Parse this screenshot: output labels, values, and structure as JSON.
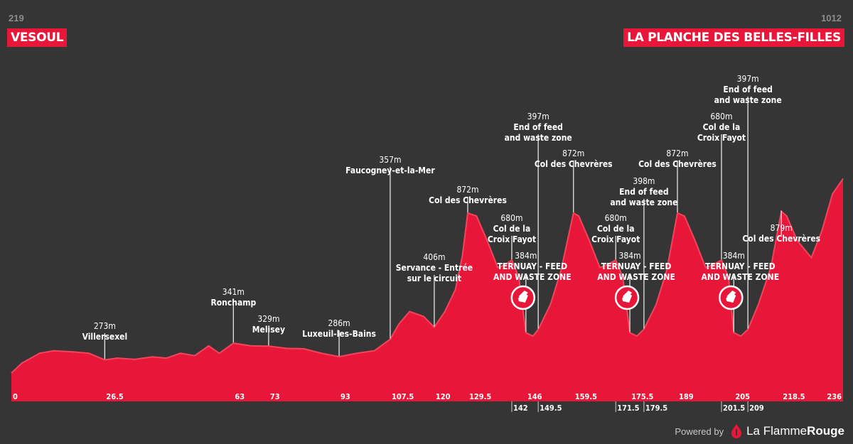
{
  "header": {
    "start_altitude": "219",
    "start_name": "VESOUL",
    "end_altitude": "1012",
    "end_name": "LA PLANCHE DES BELLES-FILLES"
  },
  "footer": {
    "powered_by": "Powered by",
    "brand_prefix": "La Flamme",
    "brand_suffix": "Rouge"
  },
  "colors": {
    "background": "#353535",
    "profile": "#e8173a",
    "profile_highlight": "#f2455c",
    "text": "#ffffff"
  },
  "chart_data": {
    "type": "area",
    "title": "",
    "xlabel": "",
    "ylabel": "",
    "x_unit": "km",
    "x_range": [
      0,
      236
    ],
    "profile": [
      [
        0,
        219
      ],
      [
        3,
        260
      ],
      [
        8,
        300
      ],
      [
        12,
        310
      ],
      [
        18,
        305
      ],
      [
        22,
        300
      ],
      [
        26.5,
        273
      ],
      [
        30,
        280
      ],
      [
        35,
        275
      ],
      [
        40,
        285
      ],
      [
        44,
        280
      ],
      [
        48,
        300
      ],
      [
        52,
        290
      ],
      [
        56,
        330
      ],
      [
        59,
        300
      ],
      [
        63,
        341
      ],
      [
        68,
        330
      ],
      [
        73,
        329
      ],
      [
        78,
        320
      ],
      [
        83,
        318
      ],
      [
        88,
        300
      ],
      [
        93,
        286
      ],
      [
        98,
        300
      ],
      [
        103,
        310
      ],
      [
        107.5,
        357
      ],
      [
        110,
        420
      ],
      [
        113,
        470
      ],
      [
        117,
        450
      ],
      [
        120,
        406
      ],
      [
        123,
        470
      ],
      [
        126,
        560
      ],
      [
        128,
        700
      ],
      [
        129.5,
        872
      ],
      [
        132,
        860
      ],
      [
        135,
        760
      ],
      [
        138,
        650
      ],
      [
        140,
        660
      ],
      [
        142,
        680
      ],
      [
        144,
        610
      ],
      [
        146,
        384
      ],
      [
        148,
        370
      ],
      [
        149.5,
        397
      ],
      [
        153,
        500
      ],
      [
        156,
        640
      ],
      [
        159.5,
        872
      ],
      [
        161,
        860
      ],
      [
        164,
        760
      ],
      [
        167,
        650
      ],
      [
        169,
        660
      ],
      [
        171.5,
        680
      ],
      [
        173.5,
        610
      ],
      [
        175.5,
        384
      ],
      [
        177.5,
        370
      ],
      [
        179.5,
        398
      ],
      [
        183,
        500
      ],
      [
        186,
        640
      ],
      [
        189,
        872
      ],
      [
        191,
        860
      ],
      [
        194,
        760
      ],
      [
        197,
        650
      ],
      [
        199,
        660
      ],
      [
        201.5,
        680
      ],
      [
        203.5,
        610
      ],
      [
        205,
        384
      ],
      [
        207,
        370
      ],
      [
        209,
        397
      ],
      [
        212,
        500
      ],
      [
        215.5,
        650
      ],
      [
        218.5,
        879
      ],
      [
        220,
        860
      ],
      [
        223,
        760
      ],
      [
        227,
        690
      ],
      [
        230,
        800
      ],
      [
        233,
        950
      ],
      [
        236,
        1012
      ]
    ],
    "km_labels": [
      {
        "km": 0,
        "label": "0",
        "row": 1
      },
      {
        "km": 26.5,
        "label": "26.5",
        "row": 1
      },
      {
        "km": 63,
        "label": "63",
        "row": 1
      },
      {
        "km": 73,
        "label": "73",
        "row": 1
      },
      {
        "km": 93,
        "label": "93",
        "row": 1
      },
      {
        "km": 107.5,
        "label": "107.5",
        "row": 1
      },
      {
        "km": 120,
        "label": "120",
        "row": 1
      },
      {
        "km": 129.5,
        "label": "129.5",
        "row": 1
      },
      {
        "km": 142,
        "label": "142",
        "row": 2
      },
      {
        "km": 146,
        "label": "146",
        "row": 1
      },
      {
        "km": 149.5,
        "label": "149.5",
        "row": 2
      },
      {
        "km": 159.5,
        "label": "159.5",
        "row": 1
      },
      {
        "km": 171.5,
        "label": "171.5",
        "row": 2
      },
      {
        "km": 175.5,
        "label": "175.5",
        "row": 1
      },
      {
        "km": 179.5,
        "label": "179.5",
        "row": 2
      },
      {
        "km": 189,
        "label": "189",
        "row": 1
      },
      {
        "km": 201.5,
        "label": "201.5",
        "row": 2
      },
      {
        "km": 205,
        "label": "205",
        "row": 1
      },
      {
        "km": 209,
        "label": "209",
        "row": 2
      },
      {
        "km": 218.5,
        "label": "218.5",
        "row": 1
      },
      {
        "km": 236,
        "label": "236",
        "row": 1
      }
    ],
    "waypoints": [
      {
        "km": 26.5,
        "altitude": "273m",
        "name": [
          "Villersexel"
        ]
      },
      {
        "km": 63,
        "altitude": "341m",
        "name": [
          "Ronchamp"
        ]
      },
      {
        "km": 73,
        "altitude": "329m",
        "name": [
          "Melisey"
        ]
      },
      {
        "km": 93,
        "altitude": "286m",
        "name": [
          "Luxeuil-les-Bains"
        ]
      },
      {
        "km": 107.5,
        "altitude": "357m",
        "name": [
          "Faucogney-et-la-Mer"
        ]
      },
      {
        "km": 120,
        "altitude": "406m",
        "name": [
          "Servance - Entrée",
          "sur le circuit"
        ]
      },
      {
        "km": 129.5,
        "altitude": "872m",
        "name": [
          "Col des Chevrères"
        ]
      },
      {
        "km": 142,
        "altitude": "680m",
        "name": [
          "Col de la",
          "Croix Fayot"
        ]
      },
      {
        "km": 146,
        "altitude": "384m",
        "name": [
          "TERNUAY - FEED",
          "AND WASTE ZONE"
        ],
        "feed": true
      },
      {
        "km": 149.5,
        "altitude": "397m",
        "name": [
          "End of feed",
          "and waste zone"
        ]
      },
      {
        "km": 159.5,
        "altitude": "872m",
        "name": [
          "Col des Chevrères"
        ]
      },
      {
        "km": 171.5,
        "altitude": "680m",
        "name": [
          "Col de la",
          "Croix Fayot"
        ]
      },
      {
        "km": 175.5,
        "altitude": "384m",
        "name": [
          "TERNUAY - FEED",
          "AND WASTE ZONE"
        ],
        "feed": true
      },
      {
        "km": 179.5,
        "altitude": "398m",
        "name": [
          "End of feed",
          "and waste zone"
        ]
      },
      {
        "km": 189,
        "altitude": "872m",
        "name": [
          "Col des Chevrères"
        ]
      },
      {
        "km": 201.5,
        "altitude": "680m",
        "name": [
          "Col de la",
          "Croix Fayot"
        ]
      },
      {
        "km": 205,
        "altitude": "384m",
        "name": [
          "TERNUAY - FEED",
          "AND WASTE ZONE"
        ],
        "feed": true
      },
      {
        "km": 209,
        "altitude": "397m",
        "name": [
          "End of feed",
          "and waste zone"
        ]
      },
      {
        "km": 218.5,
        "altitude": "879m",
        "name": [
          "Col des Chevrères"
        ]
      }
    ]
  }
}
